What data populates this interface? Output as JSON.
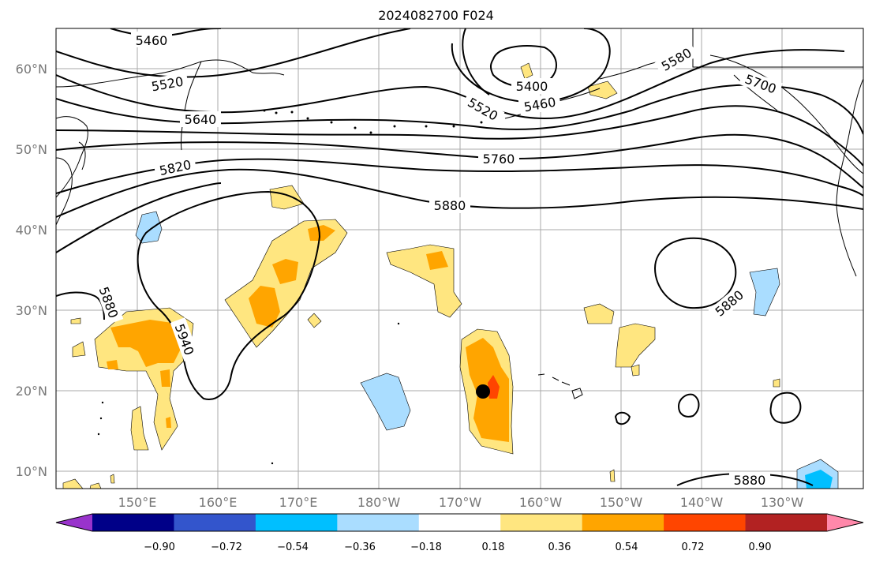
{
  "title": "2024082700 F024",
  "map": {
    "lat_labels": [
      "60°N",
      "50°N",
      "40°N",
      "30°N",
      "20°N",
      "10°N"
    ],
    "lon_labels": [
      "150°E",
      "160°E",
      "170°E",
      "180°W",
      "170°W",
      "160°W",
      "150°W",
      "140°W",
      "130°W"
    ],
    "contour_labels": [
      "5460",
      "5520",
      "5640",
      "5820",
      "5760",
      "5880",
      "5400",
      "5520",
      "5460",
      "5580",
      "5700",
      "5880",
      "5940",
      "5880",
      "5880"
    ],
    "marker": "storm-center"
  },
  "colorbar": {
    "colors": [
      "#9933cc",
      "#000088",
      "#3355cc",
      "#00bfff",
      "#aaddff",
      "#ffffff",
      "#ffe680",
      "#ffa500",
      "#ff4500",
      "#b22222",
      "#ff88aa"
    ],
    "labels": [
      "−0.90",
      "−0.72",
      "−0.54",
      "−0.36",
      "−0.18",
      "0.18",
      "0.36",
      "0.54",
      "0.72",
      "0.90"
    ]
  }
}
